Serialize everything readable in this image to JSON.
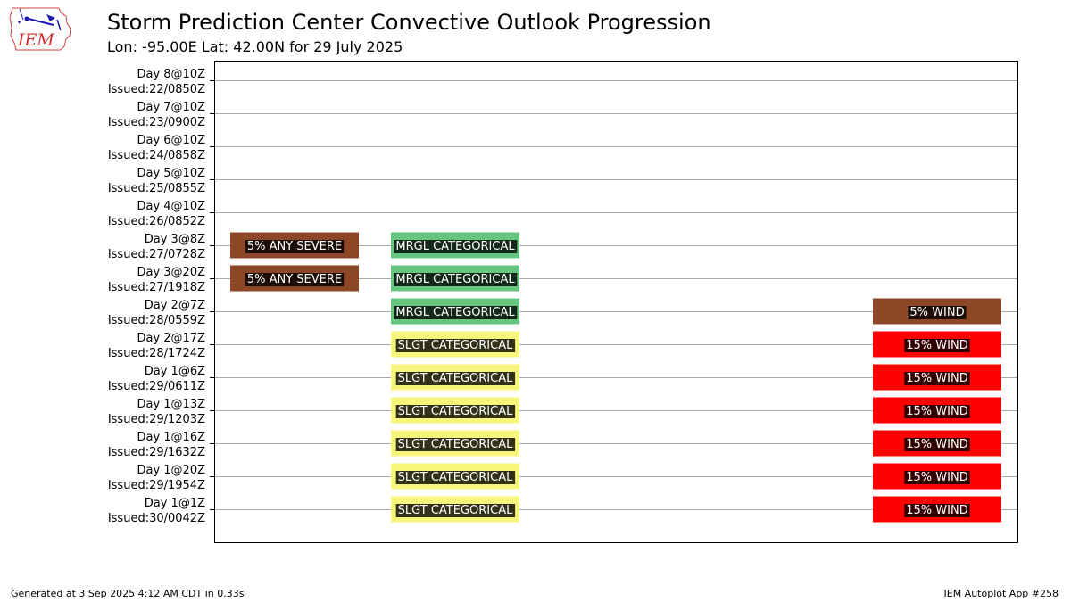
{
  "header": {
    "logo_text": "IEM",
    "title": "Storm Prediction Center Convective Outlook Progression",
    "subtitle": "Lon: -95.00E Lat: 42.00N for 29 July 2025"
  },
  "footer": {
    "left": "Generated at 3 Sep 2025 4:12 AM CDT in 0.33s",
    "right": "IEM Autoplot App #258"
  },
  "colors": {
    "any_severe": "#8b4726",
    "mrgl": "#66c57f",
    "slgt": "#f6f67b",
    "wind_5": "#8b4726",
    "wind_15": "#ff0000",
    "label_bg": "#000000",
    "label_text": "#ffffff",
    "grid": "#aaaaaa"
  },
  "chart_data": {
    "type": "table",
    "columns": [
      "Any Severe",
      "Categorical",
      "Wind"
    ],
    "rows": [
      {
        "line1": "Day 8@10Z",
        "line2": "Issued:22/0850Z",
        "cells": [
          "",
          "",
          ""
        ]
      },
      {
        "line1": "Day 7@10Z",
        "line2": "Issued:23/0900Z",
        "cells": [
          "",
          "",
          ""
        ]
      },
      {
        "line1": "Day 6@10Z",
        "line2": "Issued:24/0858Z",
        "cells": [
          "",
          "",
          ""
        ]
      },
      {
        "line1": "Day 5@10Z",
        "line2": "Issued:25/0855Z",
        "cells": [
          "",
          "",
          ""
        ]
      },
      {
        "line1": "Day 4@10Z",
        "line2": "Issued:26/0852Z",
        "cells": [
          "",
          "",
          ""
        ]
      },
      {
        "line1": "Day 3@8Z",
        "line2": "Issued:27/0728Z",
        "cells": [
          "5% ANY SEVERE",
          "MRGL CATEGORICAL",
          ""
        ]
      },
      {
        "line1": "Day 3@20Z",
        "line2": "Issued:27/1918Z",
        "cells": [
          "5% ANY SEVERE",
          "MRGL CATEGORICAL",
          ""
        ]
      },
      {
        "line1": "Day 2@7Z",
        "line2": "Issued:28/0559Z",
        "cells": [
          "",
          "MRGL CATEGORICAL",
          "5% WIND"
        ]
      },
      {
        "line1": "Day 2@17Z",
        "line2": "Issued:28/1724Z",
        "cells": [
          "",
          "SLGT CATEGORICAL",
          "15% WIND"
        ]
      },
      {
        "line1": "Day 1@6Z",
        "line2": "Issued:29/0611Z",
        "cells": [
          "",
          "SLGT CATEGORICAL",
          "15% WIND"
        ]
      },
      {
        "line1": "Day 1@13Z",
        "line2": "Issued:29/1203Z",
        "cells": [
          "",
          "SLGT CATEGORICAL",
          "15% WIND"
        ]
      },
      {
        "line1": "Day 1@16Z",
        "line2": "Issued:29/1632Z",
        "cells": [
          "",
          "SLGT CATEGORICAL",
          "15% WIND"
        ]
      },
      {
        "line1": "Day 1@20Z",
        "line2": "Issued:29/1954Z",
        "cells": [
          "",
          "SLGT CATEGORICAL",
          "15% WIND"
        ]
      },
      {
        "line1": "Day 1@1Z",
        "line2": "Issued:30/0042Z",
        "cells": [
          "",
          "SLGT CATEGORICAL",
          "15% WIND"
        ]
      }
    ],
    "grid": true
  }
}
